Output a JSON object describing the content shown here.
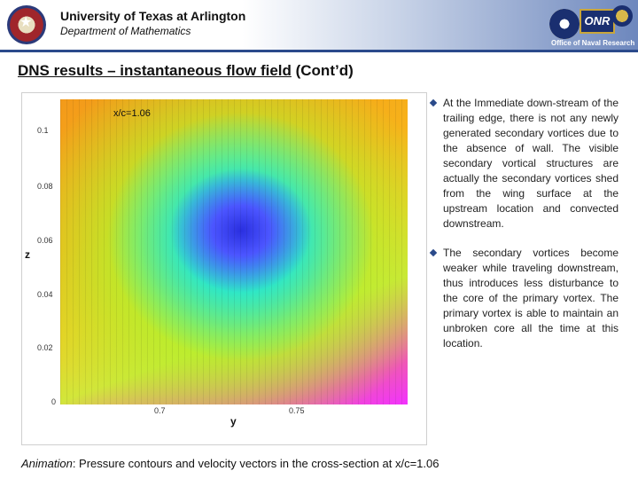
{
  "header": {
    "university": "University of Texas at Arlington",
    "department": "Department of Mathematics",
    "onr_badge": "ONR",
    "onr_text": "Office of Naval Research"
  },
  "slide": {
    "title_pre": "DNS results – instantaneous flow field",
    "title_post": " (Cont’d)"
  },
  "plot": {
    "label": "x/c=1.06",
    "y_axis_label": "z",
    "x_axis_label": "y",
    "y_ticks": [
      "0.1",
      "0.08",
      "0.06",
      "0.04",
      "0.02",
      "0"
    ],
    "x_ticks": [
      "0.7",
      "0.75"
    ]
  },
  "bullets": [
    "At the Immediate down-stream of the trailing edge, there is not any newly generated secondary vortices due to the absence of wall. The visible secondary vortical structures are actually the secondary vortices shed from the wing surface at the upstream location and convected downstream.",
    "The secondary vortices become weaker while traveling downstream, thus introduces less disturbance to the core of the primary vortex. The primary vortex is able to maintain an unbroken core all the time at this location."
  ],
  "caption": {
    "lead": "Animation",
    "text": ": Pressure contours and velocity vectors in the cross-section at x/c=1.06"
  }
}
